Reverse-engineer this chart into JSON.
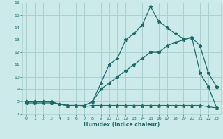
{
  "title": "",
  "xlabel": "Humidex (Indice chaleur)",
  "xlim": [
    -0.5,
    23.5
  ],
  "ylim": [
    7,
    16
  ],
  "xticks": [
    0,
    1,
    2,
    3,
    4,
    5,
    6,
    7,
    8,
    9,
    10,
    11,
    12,
    13,
    14,
    15,
    16,
    17,
    18,
    19,
    20,
    21,
    22,
    23
  ],
  "yticks": [
    7,
    8,
    9,
    10,
    11,
    12,
    13,
    14,
    15,
    16
  ],
  "background_color": "#cdeaea",
  "grid_color": "#aad0d0",
  "line_color": "#1a6b6b",
  "line1_x": [
    0,
    1,
    2,
    3,
    4,
    5,
    6,
    7,
    8,
    9,
    10,
    11,
    12,
    13,
    14,
    15,
    16,
    17,
    18,
    19,
    20,
    21,
    22,
    23
  ],
  "line1_y": [
    8.0,
    8.0,
    8.0,
    8.0,
    7.8,
    7.7,
    7.7,
    7.7,
    8.0,
    9.0,
    9.5,
    10.0,
    10.5,
    11.0,
    11.5,
    12.0,
    12.0,
    12.5,
    12.8,
    13.0,
    13.2,
    12.5,
    10.3,
    9.2
  ],
  "line2_x": [
    0,
    1,
    2,
    3,
    4,
    5,
    6,
    7,
    8,
    9,
    10,
    11,
    12,
    13,
    14,
    15,
    16,
    17,
    18,
    19,
    20,
    21,
    22,
    23
  ],
  "line2_y": [
    8.0,
    8.0,
    8.0,
    8.0,
    7.8,
    7.7,
    7.7,
    7.7,
    8.0,
    9.5,
    11.0,
    11.5,
    13.0,
    13.5,
    14.2,
    15.7,
    14.5,
    14.0,
    13.5,
    13.1,
    13.2,
    10.3,
    9.2,
    7.5
  ],
  "line3_x": [
    0,
    1,
    2,
    3,
    4,
    5,
    6,
    7,
    8,
    9,
    10,
    11,
    12,
    13,
    14,
    15,
    16,
    17,
    18,
    19,
    20,
    21,
    22,
    23
  ],
  "line3_y": [
    7.9,
    7.9,
    7.9,
    7.9,
    7.8,
    7.7,
    7.7,
    7.6,
    7.7,
    7.7,
    7.7,
    7.7,
    7.7,
    7.7,
    7.7,
    7.7,
    7.7,
    7.7,
    7.7,
    7.7,
    7.7,
    7.7,
    7.6,
    7.5
  ]
}
